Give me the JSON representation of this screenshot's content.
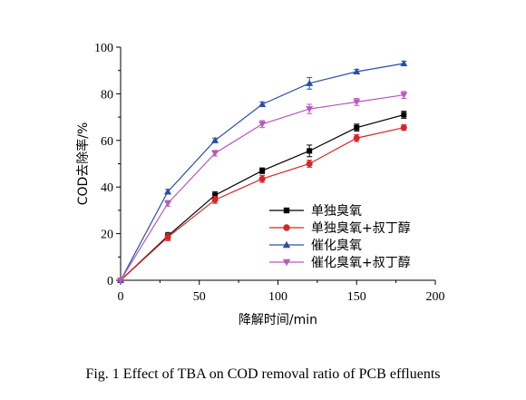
{
  "caption": "Fig. 1    Effect of TBA on COD removal ratio of PCB effluents",
  "chart_data": {
    "type": "line",
    "xlabel": "降解时间/min",
    "ylabel": "COD去除率/%",
    "xlim": [
      0,
      200
    ],
    "ylim": [
      0,
      100
    ],
    "xticks": [
      0,
      50,
      100,
      150,
      200
    ],
    "yticks": [
      0,
      20,
      40,
      60,
      80,
      100
    ],
    "grid": false,
    "legend_position": "bottom-right",
    "x": [
      0,
      30,
      60,
      90,
      120,
      150,
      180
    ],
    "series": [
      {
        "name": "单独臭氧",
        "color": "#000000",
        "marker": "square",
        "values": [
          0,
          19,
          36.5,
          47,
          55.5,
          65.5,
          71
        ],
        "errors": [
          0,
          1.5,
          1.5,
          1.2,
          2.5,
          1.5,
          1.5
        ]
      },
      {
        "name": "单独臭氧+叔丁醇",
        "color": "#d62728",
        "marker": "circle",
        "values": [
          0,
          18.5,
          34.5,
          43.5,
          50,
          61,
          65.5
        ],
        "errors": [
          0,
          1.5,
          1.5,
          1.5,
          1.5,
          1.5,
          1.2
        ]
      },
      {
        "name": "催化臭氧",
        "color": "#2c4fa3",
        "marker": "triangle-up",
        "values": [
          0,
          38,
          60,
          75.5,
          84.5,
          89.5,
          93
        ],
        "errors": [
          0,
          1,
          1,
          1,
          2.5,
          1,
          1
        ]
      },
      {
        "name": "催化臭氧+叔丁醇",
        "color": "#b659bf",
        "marker": "triangle-down",
        "values": [
          0,
          33,
          54.5,
          67,
          73.5,
          76.5,
          79.5
        ],
        "errors": [
          0,
          1.2,
          1.2,
          1.5,
          2,
          1.5,
          1.5
        ]
      }
    ]
  }
}
